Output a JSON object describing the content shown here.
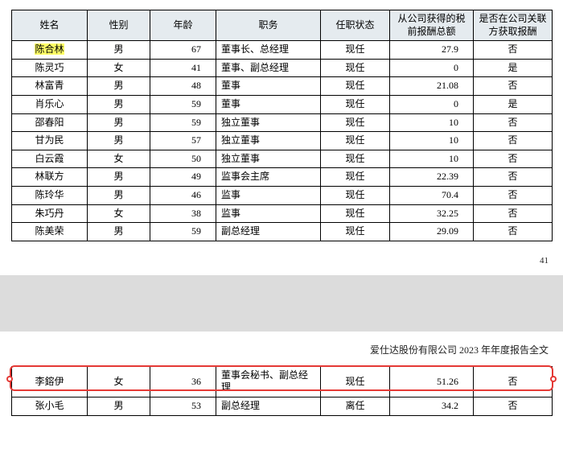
{
  "columns": [
    "姓名",
    "性别",
    "年龄",
    "职务",
    "任职状态",
    "从公司获得的税前报酬总额",
    "是否在公司关联方获取报酬"
  ],
  "rows1": [
    {
      "name": "陈合林",
      "gender": "男",
      "age": "67",
      "position": "董事长、总经理",
      "status": "现任",
      "comp": "27.9",
      "rel": "否",
      "highlight": true
    },
    {
      "name": "陈灵巧",
      "gender": "女",
      "age": "41",
      "position": "董事、副总经理",
      "status": "现任",
      "comp": "0",
      "rel": "是"
    },
    {
      "name": "林富青",
      "gender": "男",
      "age": "48",
      "position": "董事",
      "status": "现任",
      "comp": "21.08",
      "rel": "否"
    },
    {
      "name": "肖乐心",
      "gender": "男",
      "age": "59",
      "position": "董事",
      "status": "现任",
      "comp": "0",
      "rel": "是"
    },
    {
      "name": "邵春阳",
      "gender": "男",
      "age": "59",
      "position": "独立董事",
      "status": "现任",
      "comp": "10",
      "rel": "否"
    },
    {
      "name": "甘为民",
      "gender": "男",
      "age": "57",
      "position": "独立董事",
      "status": "现任",
      "comp": "10",
      "rel": "否"
    },
    {
      "name": "白云霞",
      "gender": "女",
      "age": "50",
      "position": "独立董事",
      "status": "现任",
      "comp": "10",
      "rel": "否"
    },
    {
      "name": "林联方",
      "gender": "男",
      "age": "49",
      "position": "监事会主席",
      "status": "现任",
      "comp": "22.39",
      "rel": "否"
    },
    {
      "name": "陈玲华",
      "gender": "男",
      "age": "46",
      "position": "监事",
      "status": "现任",
      "comp": "70.4",
      "rel": "否"
    },
    {
      "name": "朱巧丹",
      "gender": "女",
      "age": "38",
      "position": "监事",
      "status": "现任",
      "comp": "32.25",
      "rel": "否"
    },
    {
      "name": "陈美荣",
      "gender": "男",
      "age": "59",
      "position": "副总经理",
      "status": "现任",
      "comp": "29.09",
      "rel": "否"
    }
  ],
  "pageNumber": "41",
  "caption2": "爱仕达股份有限公司 2023 年年度报告全文",
  "rows2": [
    {
      "name": "李鎔伊",
      "gender": "女",
      "age": "36",
      "position": "董事会秘书、副总经理",
      "status": "现任",
      "comp": "51.26",
      "rel": "否",
      "redbox": true
    },
    {
      "name": "张小毛",
      "gender": "男",
      "age": "53",
      "position": "副总经理",
      "status": "离任",
      "comp": "34.2",
      "rel": "否"
    }
  ]
}
